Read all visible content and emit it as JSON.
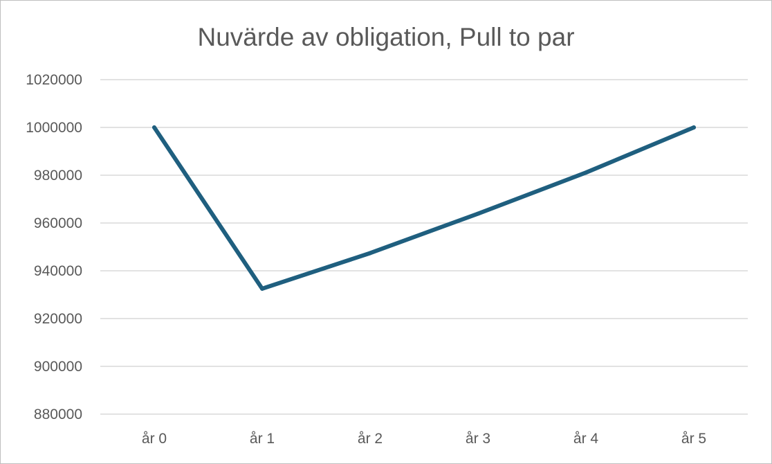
{
  "chart_data": {
    "type": "line",
    "title": "Nuvärde av obligation, Pull to par",
    "xlabel": "",
    "ylabel": "",
    "categories": [
      "år 0",
      "år 1",
      "år 2",
      "år 3",
      "år 4",
      "år 5"
    ],
    "series": [
      {
        "values": [
          1000000,
          932500,
          947400,
          963900,
          981100,
          1000000
        ],
        "color": "#1f5f7f"
      }
    ],
    "ylim": [
      880000,
      1020000
    ],
    "yticks": [
      "880000",
      "900000",
      "920000",
      "940000",
      "960000",
      "980000",
      "1000000",
      "1020000"
    ],
    "grid": true,
    "legend": "none"
  }
}
